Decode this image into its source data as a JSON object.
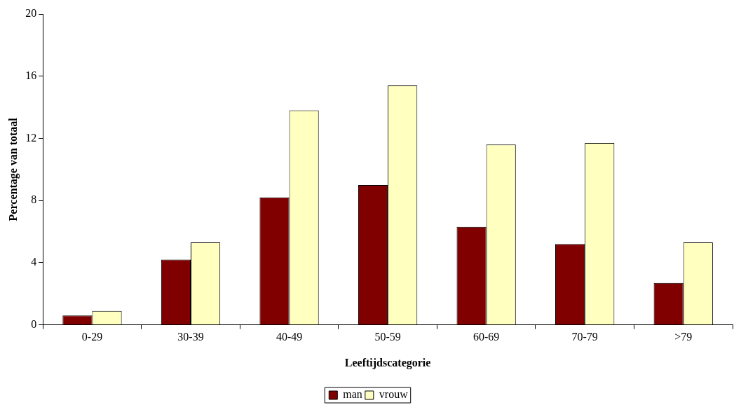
{
  "chart_data": {
    "type": "bar",
    "xlabel": "Leeftijdscategorie",
    "ylabel": "Percentage van totaal",
    "categories": [
      "0-29",
      "30-39",
      "40-49",
      "50-59",
      "60-69",
      "70-79",
      ">79"
    ],
    "series": [
      {
        "name": "man",
        "color": "#800000",
        "values": [
          0.6,
          4.2,
          8.2,
          9.0,
          6.3,
          5.2,
          2.7
        ]
      },
      {
        "name": "vrouw",
        "color": "#ffffc0",
        "values": [
          0.9,
          5.3,
          13.8,
          15.4,
          11.6,
          11.7,
          5.3
        ]
      }
    ],
    "ylim": [
      0,
      20
    ],
    "yticks": [
      0,
      4,
      8,
      12,
      16,
      20
    ],
    "grid": false,
    "legend": "bottom"
  }
}
